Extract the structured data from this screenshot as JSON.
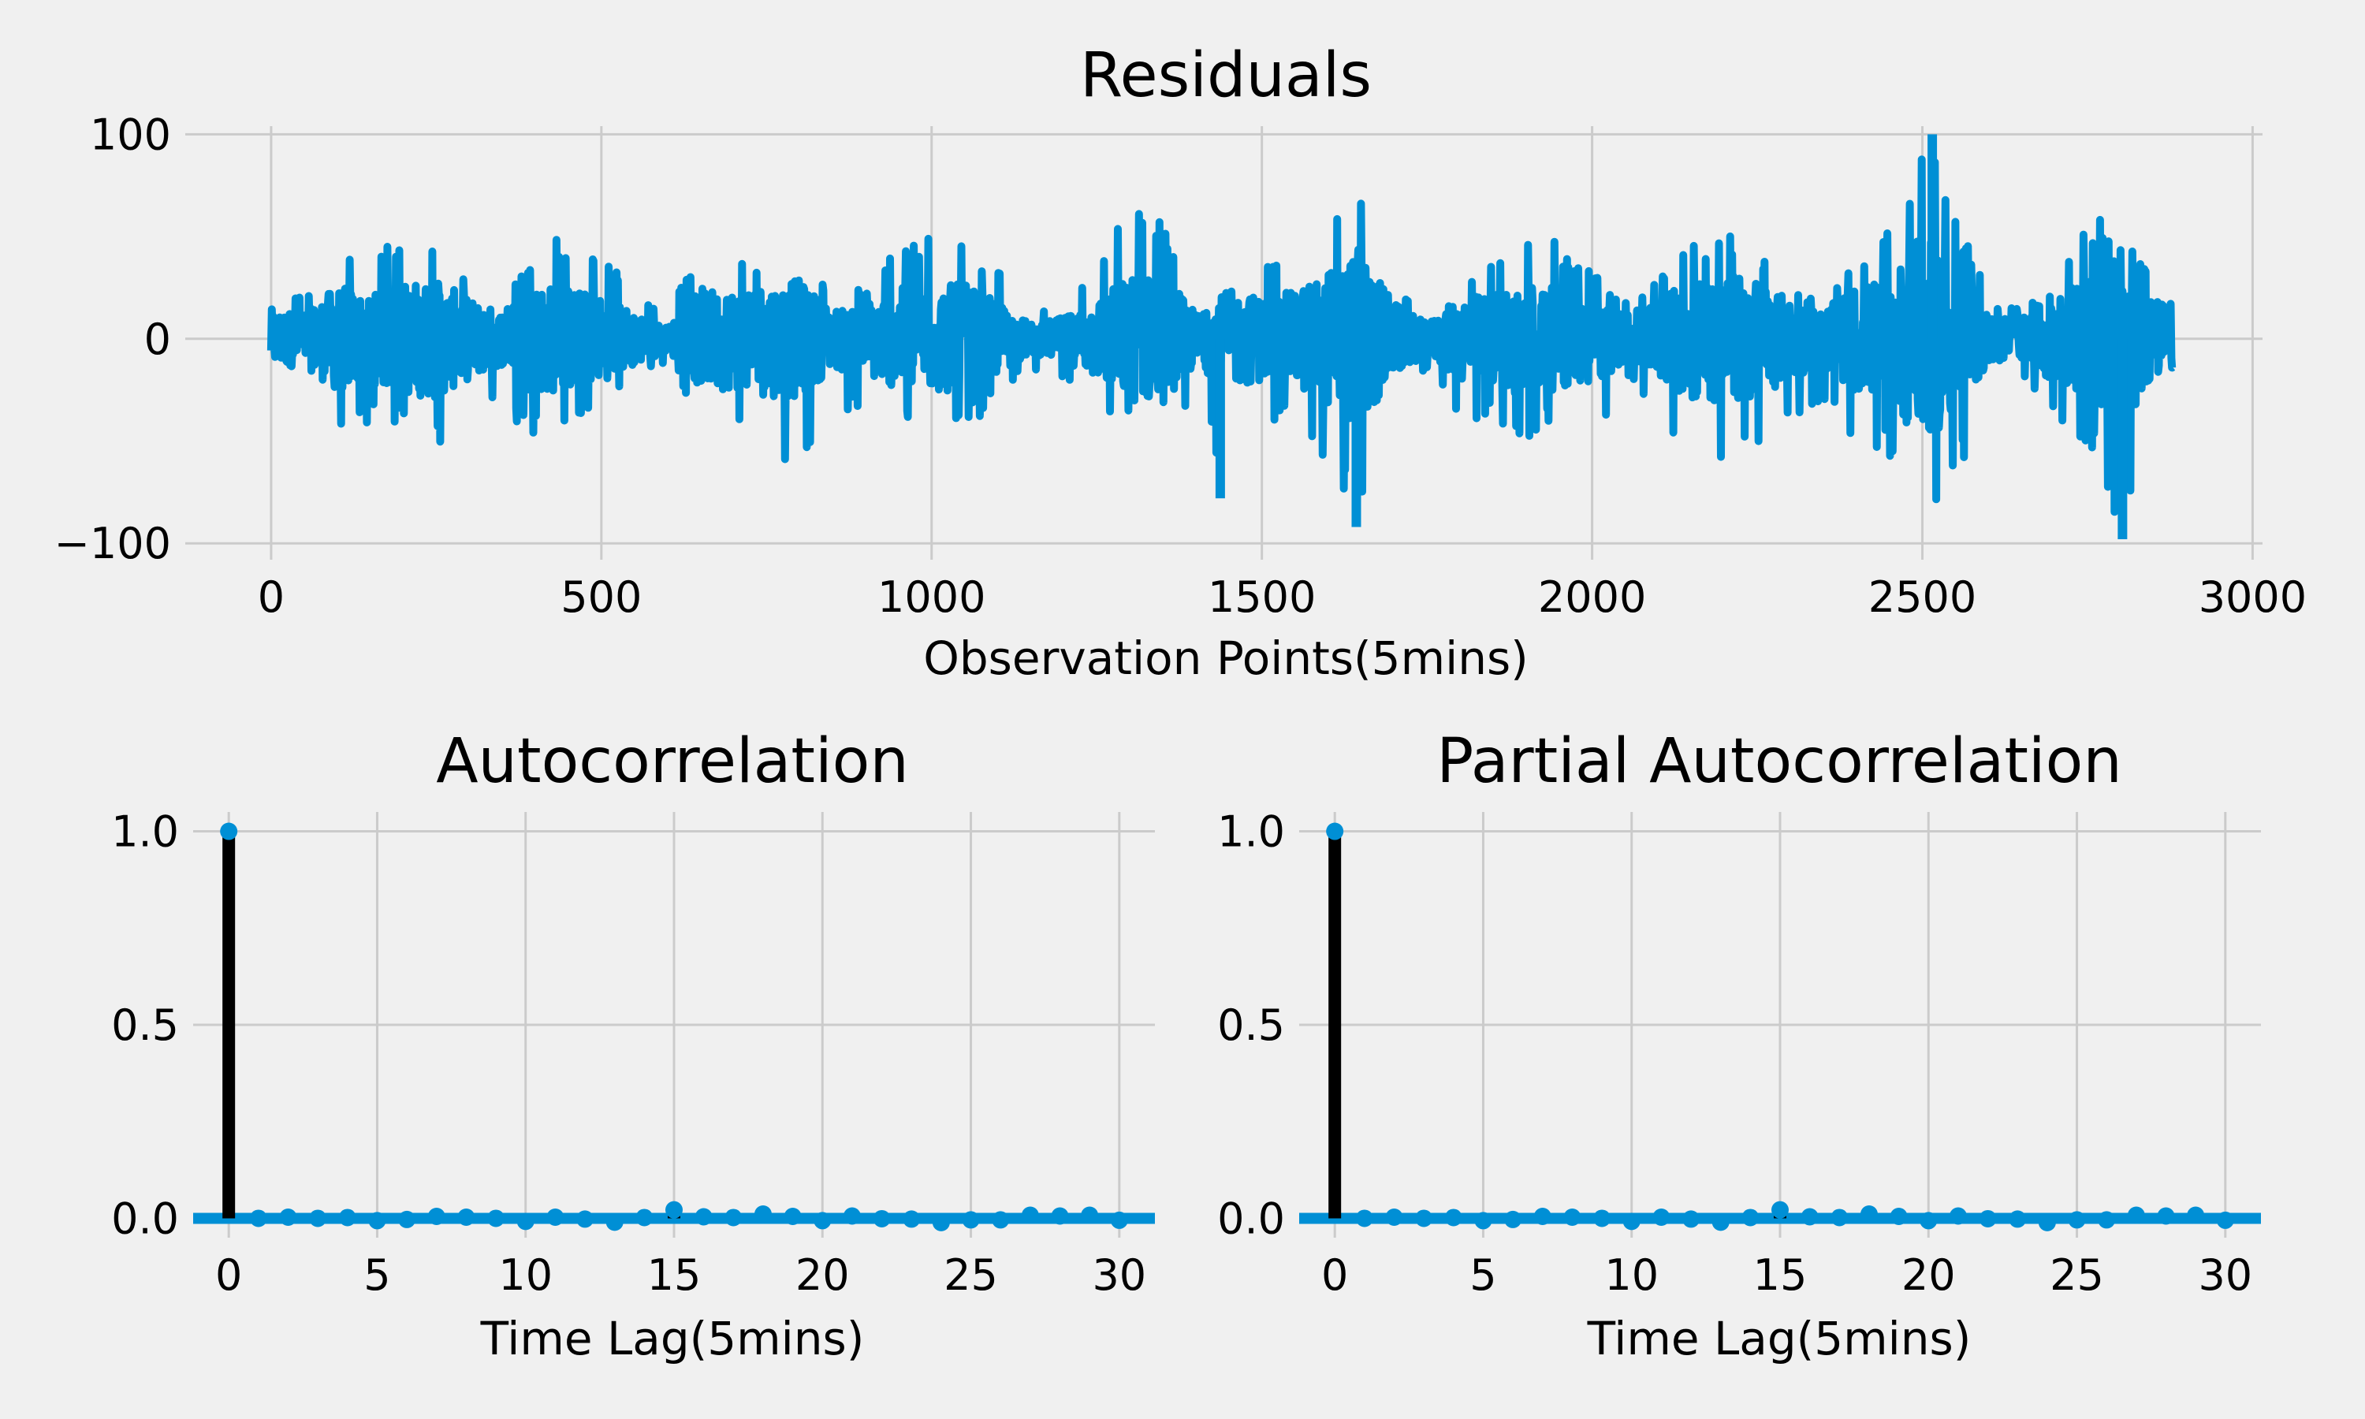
{
  "colors": {
    "background": "#f0f0f0",
    "series": "#008fd5",
    "stem": "#000000",
    "grid": "#cbcbcb"
  },
  "chart_data": [
    {
      "id": "residuals",
      "type": "line",
      "title": "Residuals",
      "xlabel": "Observation Points(5mins)",
      "ylabel": "",
      "xlim": [
        -130,
        3015
      ],
      "ylim": [
        -108,
        104
      ],
      "xticks": [
        0,
        500,
        1000,
        1500,
        2000,
        2500,
        3000
      ],
      "xtick_labels": [
        "0",
        "500",
        "1000",
        "1500",
        "2000",
        "2500",
        "3000"
      ],
      "yticks": [
        -100,
        0,
        100
      ],
      "ytick_labels": [
        "−100",
        "0",
        "100"
      ],
      "grid": true,
      "n_points": 2880,
      "x": [
        0,
        50,
        100,
        150,
        200,
        250,
        300,
        350,
        400,
        450,
        500,
        550,
        600,
        650,
        700,
        750,
        800,
        850,
        900,
        950,
        1000,
        1050,
        1100,
        1150,
        1200,
        1250,
        1300,
        1350,
        1400,
        1450,
        1500,
        1550,
        1600,
        1650,
        1700,
        1750,
        1800,
        1850,
        1900,
        1950,
        2000,
        2050,
        2100,
        2150,
        2200,
        2250,
        2300,
        2350,
        2400,
        2450,
        2500,
        2550,
        2600,
        2650,
        2700,
        2750,
        2800,
        2850,
        2880
      ],
      "y_upper": [
        23,
        22,
        45,
        38,
        55,
        50,
        32,
        12,
        50,
        52,
        40,
        25,
        10,
        50,
        45,
        42,
        40,
        22,
        28,
        45,
        55,
        52,
        35,
        12,
        18,
        32,
        68,
        60,
        18,
        8,
        35,
        40,
        62,
        72,
        30,
        12,
        30,
        40,
        55,
        48,
        35,
        20,
        30,
        52,
        52,
        48,
        28,
        20,
        45,
        52,
        100,
        65,
        20,
        15,
        40,
        55,
        65,
        30,
        28
      ],
      "y_lower": [
        -30,
        -25,
        -50,
        -40,
        -45,
        -55,
        -40,
        -35,
        -50,
        -40,
        -35,
        -25,
        -10,
        -40,
        -45,
        -60,
        -65,
        -30,
        -40,
        -45,
        -42,
        -45,
        -30,
        -15,
        -20,
        -40,
        -45,
        -55,
        -30,
        -78,
        -40,
        -45,
        -60,
        -92,
        -35,
        -15,
        -45,
        -40,
        -50,
        -40,
        -50,
        -20,
        -40,
        -55,
        -65,
        -60,
        -40,
        -30,
        -50,
        -60,
        -85,
        -70,
        -25,
        -20,
        -45,
        -50,
        -98,
        -40,
        -35
      ],
      "highlights": [
        {
          "x": 2515,
          "y": 100
        },
        {
          "x": 2803,
          "y": -98
        },
        {
          "x": 1643,
          "y": -92
        },
        {
          "x": 1437,
          "y": -78
        }
      ]
    },
    {
      "id": "acf",
      "type": "stem",
      "title": "Autocorrelation",
      "xlabel": "Time Lag(5mins)",
      "ylabel": "",
      "xlim": [
        -1.2,
        31.2
      ],
      "ylim": [
        -0.05,
        1.05
      ],
      "xticks": [
        0,
        5,
        10,
        15,
        20,
        25,
        30
      ],
      "xtick_labels": [
        "0",
        "5",
        "10",
        "15",
        "20",
        "25",
        "30"
      ],
      "yticks": [
        0.0,
        0.5,
        1.0
      ],
      "ytick_labels": [
        "0.0",
        "0.5",
        "1.0"
      ],
      "grid": true,
      "lags": [
        0,
        1,
        2,
        3,
        4,
        5,
        6,
        7,
        8,
        9,
        10,
        11,
        12,
        13,
        14,
        15,
        16,
        17,
        18,
        19,
        20,
        21,
        22,
        23,
        24,
        25,
        26,
        27,
        28,
        29,
        30
      ],
      "values": [
        1.0,
        0.0,
        0.003,
        0.0,
        0.002,
        -0.006,
        -0.003,
        0.005,
        0.003,
        0.0,
        -0.008,
        0.003,
        -0.002,
        -0.01,
        0.002,
        0.022,
        0.004,
        0.002,
        0.011,
        0.005,
        -0.006,
        0.006,
        -0.001,
        -0.002,
        -0.011,
        -0.004,
        -0.004,
        0.008,
        0.006,
        0.008,
        -0.005
      ]
    },
    {
      "id": "pacf",
      "type": "stem",
      "title": "Partial Autocorrelation",
      "xlabel": "Time Lag(5mins)",
      "ylabel": "",
      "xlim": [
        -1.2,
        31.2
      ],
      "ylim": [
        -0.05,
        1.05
      ],
      "xticks": [
        0,
        5,
        10,
        15,
        20,
        25,
        30
      ],
      "xtick_labels": [
        "0",
        "5",
        "10",
        "15",
        "20",
        "25",
        "30"
      ],
      "yticks": [
        0.0,
        0.5,
        1.0
      ],
      "ytick_labels": [
        "0.0",
        "0.5",
        "1.0"
      ],
      "grid": true,
      "lags": [
        0,
        1,
        2,
        3,
        4,
        5,
        6,
        7,
        8,
        9,
        10,
        11,
        12,
        13,
        14,
        15,
        16,
        17,
        18,
        19,
        20,
        21,
        22,
        23,
        24,
        25,
        26,
        27,
        28,
        29,
        30
      ],
      "values": [
        1.0,
        0.0,
        0.003,
        0.0,
        0.002,
        -0.006,
        -0.003,
        0.005,
        0.003,
        0.0,
        -0.008,
        0.003,
        -0.002,
        -0.01,
        0.002,
        0.022,
        0.004,
        0.002,
        0.011,
        0.005,
        -0.006,
        0.006,
        -0.001,
        -0.002,
        -0.011,
        -0.004,
        -0.004,
        0.008,
        0.006,
        0.008,
        -0.005
      ]
    }
  ]
}
